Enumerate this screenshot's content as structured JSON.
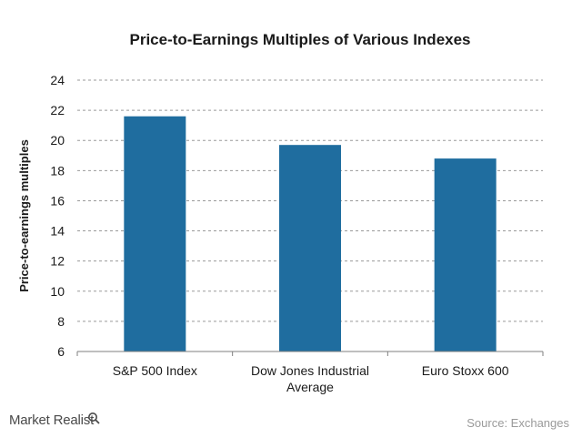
{
  "chart_data": {
    "type": "bar",
    "title": "Price-to-Earnings Multiples of Various Indexes",
    "ylabel": "Price-to-earnings multiples",
    "xlabel": "",
    "categories": [
      [
        "S&P 500 Index"
      ],
      [
        "Dow Jones Industrial",
        "Average"
      ],
      [
        "Euro Stoxx 600"
      ]
    ],
    "values": [
      21.6,
      19.7,
      18.8
    ],
    "ylim": [
      6,
      24
    ],
    "yticks": [
      "6",
      "8",
      "10",
      "12",
      "14",
      "16",
      "18",
      "20",
      "22",
      "24"
    ],
    "grid": true,
    "bar_color": "#1f6d9f"
  },
  "footer": {
    "brand": "Market Realist",
    "brand_icon": "magnifier-icon",
    "source": "Source: Exchanges"
  }
}
